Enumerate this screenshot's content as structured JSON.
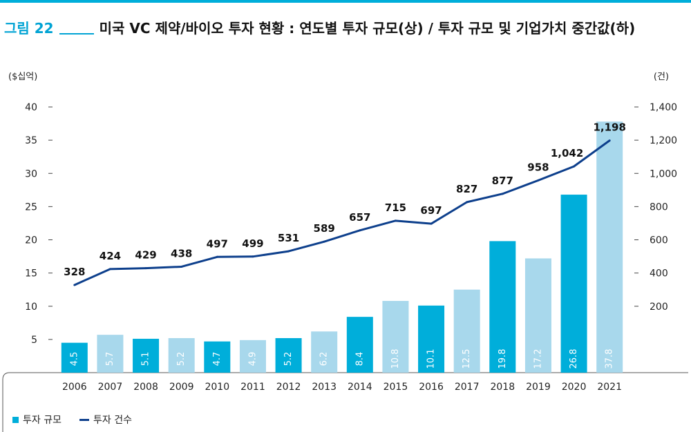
{
  "title": {
    "fig_label": "그림 22",
    "text": "미국 VC 제약/바이오 투자 현황 : 연도별 투자 규모(상) / 투자 규모 및 기업가치 중간값(하)"
  },
  "colors": {
    "accent": "#00aeda",
    "bar_dark": "#00aeda",
    "bar_light": "#a8d8ec",
    "line": "#0d3f8c"
  },
  "legend": {
    "bar_label": "투자 규모",
    "line_label": "투자 건수"
  },
  "chart_data": {
    "type": "bar+line",
    "categories": [
      "2006",
      "2007",
      "2008",
      "2009",
      "2010",
      "2011",
      "2012",
      "2013",
      "2014",
      "2015",
      "2016",
      "2017",
      "2018",
      "2019",
      "2020",
      "2021"
    ],
    "y_left_unit": "($십억)",
    "y_right_unit": "(건)",
    "y_left_ticks": [
      "5",
      "10",
      "15",
      "20",
      "25",
      "30",
      "35",
      "40"
    ],
    "y_right_ticks": [
      "200",
      "400",
      "600",
      "800",
      "1,000",
      "1,200",
      "1,400"
    ],
    "ylim_left": [
      0,
      40
    ],
    "ylim_right": [
      -200,
      1400
    ],
    "series": [
      {
        "name": "투자 규모",
        "type": "bar",
        "axis": "left",
        "values": [
          4.5,
          5.7,
          5.1,
          5.2,
          4.7,
          4.9,
          5.2,
          6.2,
          8.4,
          10.8,
          10.1,
          12.5,
          19.8,
          17.2,
          26.8,
          37.8
        ],
        "value_labels": [
          "4.5",
          "5.7",
          "5.1",
          "5.2",
          "4.7",
          "4.9",
          "5.2",
          "6.2",
          "8.4",
          "10.8",
          "10.1",
          "12.5",
          "19.8",
          "17.2",
          "26.8",
          "37.8"
        ],
        "bar_shade": [
          "dark",
          "light",
          "dark",
          "light",
          "dark",
          "light",
          "dark",
          "light",
          "dark",
          "light",
          "dark",
          "light",
          "dark",
          "light",
          "dark",
          "light"
        ]
      },
      {
        "name": "투자 건수",
        "type": "line",
        "axis": "right",
        "values": [
          328,
          424,
          429,
          438,
          497,
          499,
          531,
          589,
          657,
          715,
          697,
          827,
          877,
          958,
          1042,
          1198
        ],
        "value_labels": [
          "328",
          "424",
          "429",
          "438",
          "497",
          "499",
          "531",
          "589",
          "657",
          "715",
          "697",
          "827",
          "877",
          "958",
          "1,042",
          "1,198"
        ]
      }
    ],
    "grid": false,
    "legend_position": "bottom-left"
  }
}
